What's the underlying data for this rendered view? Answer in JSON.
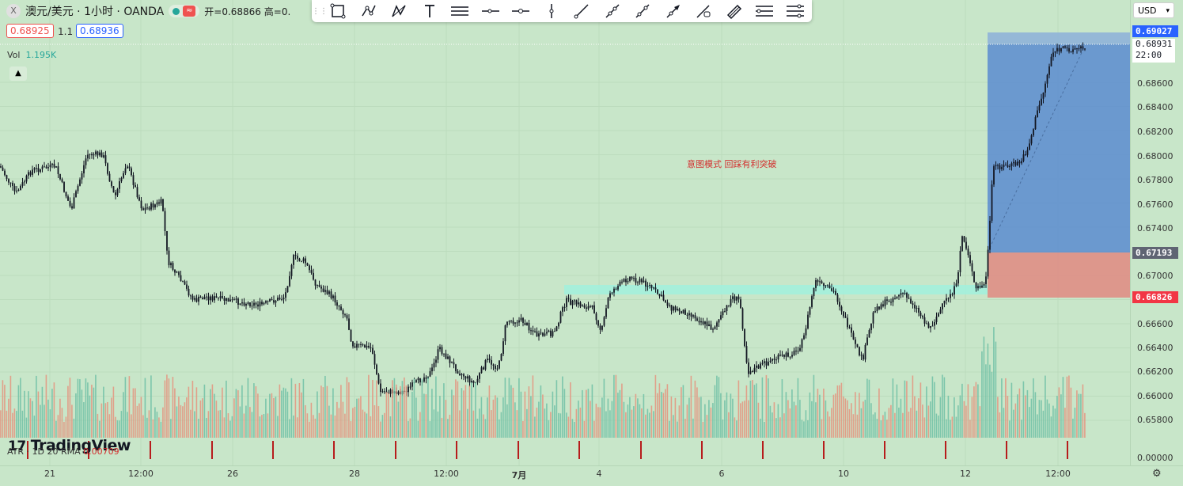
{
  "header": {
    "symbol_icon": "X",
    "title": "澳元/美元 · 1小时 · OANDA",
    "ohlc_text": "开=0.68866  高=0.",
    "bid": "0.68925",
    "spread": "1.1",
    "ask": "0.68936"
  },
  "volume_legend": {
    "label": "Vol",
    "value": "1.195K"
  },
  "atr_legend": {
    "label": "ATR · 1D 20 RMA",
    "value": "0.00709"
  },
  "annotation": "意图模式    回踩有利突破",
  "currency_select": {
    "value": "USD",
    "icon": "chevron-down-icon"
  },
  "price_axis": {
    "ticks": [
      "0.68600",
      "0.68400",
      "0.68200",
      "0.68000",
      "0.67800",
      "0.67600",
      "0.67400",
      "0.67000",
      "0.66600",
      "0.66400",
      "0.66200",
      "0.66000",
      "0.65800"
    ],
    "atr_zero": "0.00000",
    "target_price": "0.69027",
    "current_price": "0.68931",
    "current_time": "22:00",
    "entry_price": "0.67193",
    "stop_price": "0.66826"
  },
  "time_axis": [
    "21",
    "12:00",
    "26",
    "28",
    "12:00",
    "7月",
    "4",
    "6",
    "10",
    "12",
    "12:00"
  ],
  "toolbar": {
    "tools": [
      "rectangle-tool-icon",
      "path-tool-icon",
      "pattern-tool-icon",
      "text-tool-icon",
      "horizontal-ray-icon",
      "horizontal-line-icon",
      "cross-line-icon",
      "vertical-line-icon",
      "trend-line-icon",
      "extended-line-icon",
      "info-line-icon",
      "arrow-tool-icon",
      "brush-tool-icon",
      "parallel-channel-icon",
      "fib-retracement-icon",
      "settings-icon"
    ]
  },
  "logo": "TradingView",
  "colors": {
    "background": "#c8e6c9",
    "candle": "#131722",
    "vol_up": "#6fbfa6",
    "vol_down": "#e4937e",
    "target_zone": "#5b8bd0",
    "stop_zone": "#df8e85",
    "resistance_band": "#a3efdc",
    "target_tag": "#2962ff",
    "entry_tag": "#5f6473",
    "stop_tag": "#f23645"
  }
}
